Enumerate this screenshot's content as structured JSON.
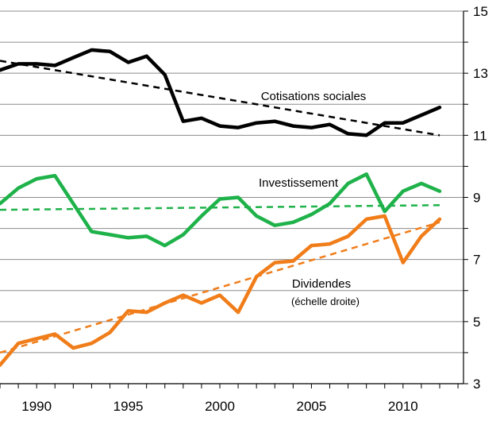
{
  "chart_data": {
    "type": "line",
    "title": "",
    "xlabel": "",
    "ylabel": "",
    "xlim": [
      1988,
      2013.3
    ],
    "ylim": [
      3,
      15
    ],
    "x_ticks": [
      1990,
      1995,
      2000,
      2005,
      2010
    ],
    "y_ticks": [
      3,
      5,
      7,
      9,
      11,
      13,
      15
    ],
    "y_axis_side": "right",
    "grid": "horizontal",
    "colors": {
      "cotisations": "#000000",
      "investissement": "#1fb24a",
      "dividendes": "#f07d1a"
    },
    "annotations": {
      "cotisations": "Cotisations sociales",
      "investissement": "Investissement",
      "dividendes": "Dividendes",
      "dividendes_note": "(échelle droite)"
    },
    "series": [
      {
        "key": "cotisations",
        "x": [
          1988,
          1989,
          1990,
          1991,
          1992,
          1993,
          1994,
          1995,
          1996,
          1997,
          1998,
          1999,
          2000,
          2001,
          2002,
          2003,
          2004,
          2005,
          2006,
          2007,
          2008,
          2009,
          2010,
          2011,
          2012
        ],
        "values": [
          13.1,
          13.3,
          13.3,
          13.25,
          13.5,
          13.75,
          13.7,
          13.35,
          13.55,
          12.95,
          11.45,
          11.55,
          11.3,
          11.25,
          11.4,
          11.45,
          11.3,
          11.25,
          11.35,
          11.05,
          11.0,
          11.4,
          11.4,
          11.65,
          11.9
        ],
        "trend": [
          13.4,
          11.0
        ]
      },
      {
        "key": "investissement",
        "x": [
          1988,
          1989,
          1990,
          1991,
          1992,
          1993,
          1994,
          1995,
          1996,
          1997,
          1998,
          1999,
          2000,
          2001,
          2002,
          2003,
          2004,
          2005,
          2006,
          2007,
          2008,
          2009,
          2010,
          2011,
          2012
        ],
        "values": [
          8.8,
          9.3,
          9.6,
          9.7,
          8.8,
          7.9,
          7.8,
          7.7,
          7.75,
          7.45,
          7.8,
          8.4,
          8.95,
          9.0,
          8.4,
          8.1,
          8.2,
          8.45,
          8.8,
          9.45,
          9.75,
          8.55,
          9.2,
          9.45,
          9.2
        ],
        "trend": [
          8.6,
          8.75
        ]
      },
      {
        "key": "dividendes",
        "x": [
          1988,
          1989,
          1990,
          1991,
          1992,
          1993,
          1994,
          1995,
          1996,
          1997,
          1998,
          1999,
          2000,
          2001,
          2002,
          2003,
          2004,
          2005,
          2006,
          2007,
          2008,
          2009,
          2010,
          2011,
          2012
        ],
        "values": [
          3.6,
          4.3,
          4.45,
          4.6,
          4.15,
          4.3,
          4.65,
          5.35,
          5.3,
          5.6,
          5.85,
          5.6,
          5.85,
          5.3,
          6.45,
          6.9,
          6.95,
          7.45,
          7.5,
          7.75,
          8.3,
          8.4,
          6.9,
          7.75,
          8.3
        ],
        "trend": [
          4.0,
          8.2
        ]
      }
    ]
  }
}
